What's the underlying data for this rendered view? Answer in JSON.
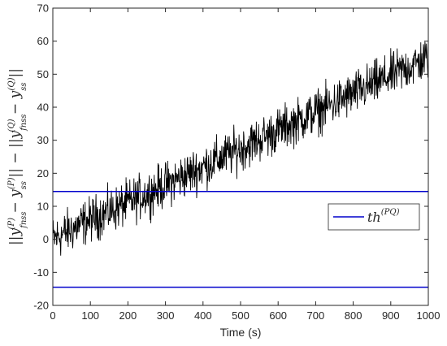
{
  "chart_data": {
    "type": "line",
    "title": "",
    "xlabel": "Time (s)",
    "ylabel": "||y_fnss^(P) − y_ss^(P)|| − ||y_fnss^(Q) − y_ss^(Q)||",
    "ylabel_parts": {
      "bar1": "||",
      "y1": "y",
      "sub1": "fnss",
      "sup1": "(P)",
      "minus1": " − ",
      "y2": "y",
      "sub2": "ss",
      "sup2": "(P)",
      "bar2": "|| − ||",
      "y3": "y",
      "sub3": "fnss",
      "sup3": "(Q)",
      "minus2": " − ",
      "y4": "y",
      "sub4": "ss",
      "sup4": "(Q)",
      "bar3": "||"
    },
    "xlim": [
      0,
      1000
    ],
    "ylim": [
      -20,
      70
    ],
    "xticks": [
      0,
      100,
      200,
      300,
      400,
      500,
      600,
      700,
      800,
      900,
      1000
    ],
    "yticks": [
      -20,
      -10,
      0,
      10,
      20,
      30,
      40,
      50,
      60,
      70
    ],
    "grid": false,
    "legend_position": "right-middle",
    "series": [
      {
        "name": "",
        "color": "#000000",
        "style": "noisy trace, sampled every 1 s",
        "trend_x": [
          0,
          100,
          200,
          300,
          400,
          500,
          600,
          700,
          800,
          900,
          1000
        ],
        "trend_y": [
          0,
          6,
          11,
          16.5,
          22,
          27.5,
          33,
          38.5,
          44,
          49.5,
          55
        ],
        "noise_range": [
          -10,
          10
        ]
      },
      {
        "name": "th^(PQ)",
        "name_parts": {
          "base": "th",
          "sup": "(PQ)"
        },
        "color": "#0000cc",
        "x": [
          0,
          1000
        ],
        "y": [
          14.5,
          14.5
        ]
      },
      {
        "name": "",
        "color": "#0000cc",
        "x": [
          0,
          1000
        ],
        "y": [
          -14.5,
          -14.5
        ]
      }
    ]
  }
}
